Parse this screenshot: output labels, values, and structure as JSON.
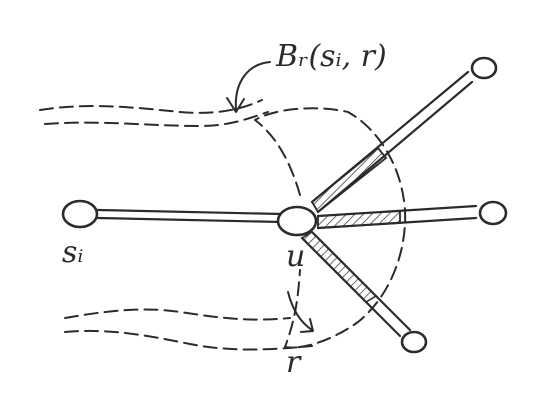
{
  "diagram": {
    "ball_label": "Bᵣ(sᵢ, r)",
    "source_label": "sᵢ",
    "center_label": "u",
    "radius_label": "r",
    "ink_color": "#2b2b2b",
    "background_color": "#ffffff"
  }
}
